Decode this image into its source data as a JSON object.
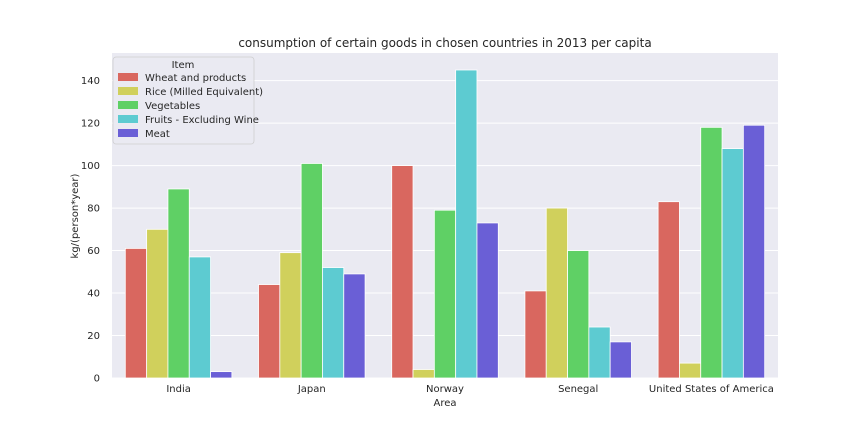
{
  "chart_data": {
    "type": "bar",
    "title": "consumption of certain goods in chosen countries in 2013 per capita",
    "xlabel": "Area",
    "ylabel": "kg/(person*year)",
    "ylim": [
      0,
      153
    ],
    "yticks": [
      0,
      20,
      40,
      60,
      80,
      100,
      120,
      140
    ],
    "grid": true,
    "legend_title": "Item",
    "legend_position": "upper-left",
    "categories": [
      "India",
      "Japan",
      "Norway",
      "Senegal",
      "United States of America"
    ],
    "series": [
      {
        "name": "Wheat and products",
        "color": "#d9675f",
        "values": [
          61,
          44,
          100,
          41,
          83
        ]
      },
      {
        "name": "Rice (Milled Equivalent)",
        "color": "#d0d05c",
        "values": [
          70,
          59,
          4,
          80,
          7
        ]
      },
      {
        "name": "Vegetables",
        "color": "#5fd065",
        "values": [
          89,
          101,
          79,
          60,
          118
        ]
      },
      {
        "name": "Fruits - Excluding Wine",
        "color": "#5dcbd1",
        "values": [
          57,
          52,
          145,
          24,
          108
        ]
      },
      {
        "name": "Meat",
        "color": "#6a5fd6",
        "values": [
          3,
          49,
          73,
          17,
          119
        ]
      }
    ]
  }
}
